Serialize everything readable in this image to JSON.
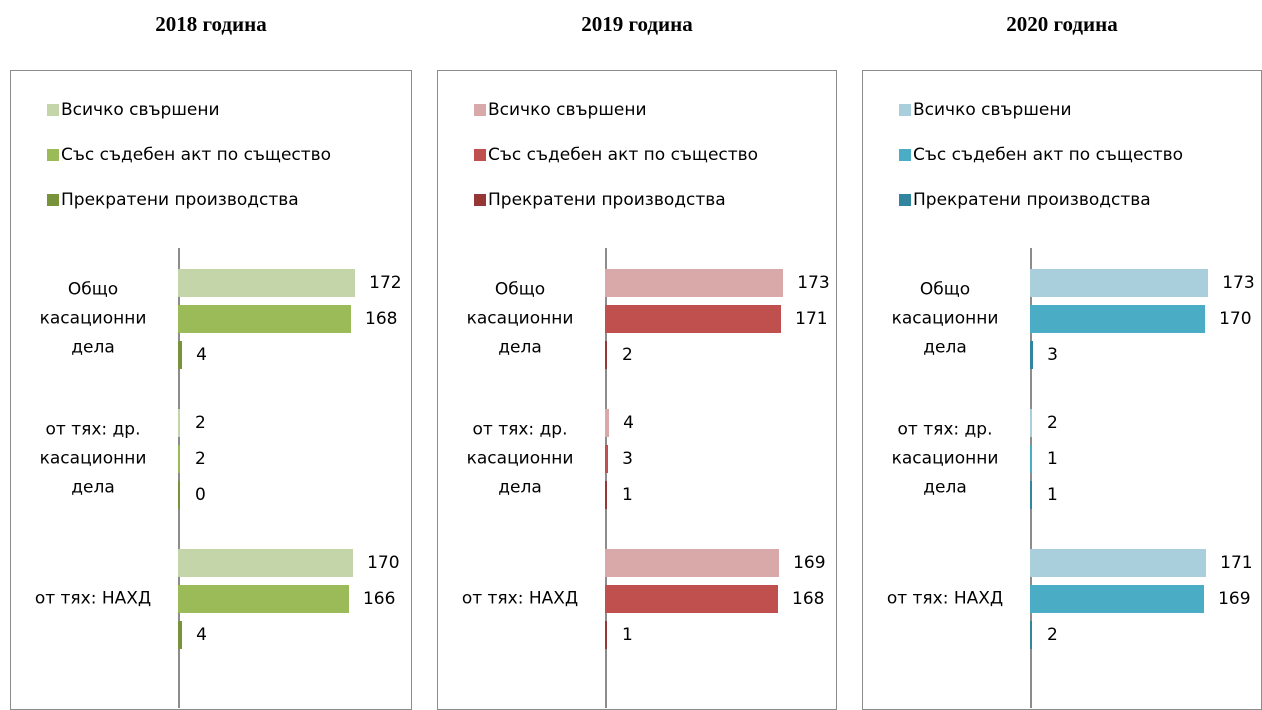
{
  "chart_data": [
    {
      "type": "bar",
      "orientation": "horizontal",
      "title": "2018 година",
      "categories": [
        "Общо касационни дела",
        "от тях: др. касационни дела",
        "от тях: НАХД"
      ],
      "xlim": [
        0,
        200
      ],
      "series": [
        {
          "name": "Всичко свършени",
          "color": "#c4d6a9",
          "values": [
            172,
            2,
            170
          ]
        },
        {
          "name": "Със съдебен акт по същество",
          "color": "#9bbb59",
          "values": [
            168,
            2,
            166
          ]
        },
        {
          "name": "Прекратени производства",
          "color": "#77933c",
          "values": [
            4,
            0,
            4
          ]
        }
      ]
    },
    {
      "type": "bar",
      "orientation": "horizontal",
      "title": "2019 година",
      "categories": [
        "Общо касационни дела",
        "от тях: др. касационни дела",
        "от тях: НАХД"
      ],
      "xlim": [
        0,
        200
      ],
      "series": [
        {
          "name": "Всичко свършени",
          "color": "#d9a9a9",
          "values": [
            173,
            4,
            169
          ]
        },
        {
          "name": "Със съдебен акт по същество",
          "color": "#c0504d",
          "values": [
            171,
            3,
            168
          ]
        },
        {
          "name": "Прекратени производства",
          "color": "#953735",
          "values": [
            2,
            1,
            1
          ]
        }
      ]
    },
    {
      "type": "bar",
      "orientation": "horizontal",
      "title": "2020 година",
      "categories": [
        "Общо касационни дела",
        "от тях: др. касационни дела",
        "от тях: НАХД"
      ],
      "xlim": [
        0,
        200
      ],
      "series": [
        {
          "name": "Всичко свършени",
          "color": "#a9cfdc",
          "values": [
            173,
            2,
            171
          ]
        },
        {
          "name": "Със съдебен акт по същество",
          "color": "#4bacc6",
          "values": [
            170,
            1,
            169
          ]
        },
        {
          "name": "Прекратени производства",
          "color": "#31859c",
          "values": [
            3,
            1,
            2
          ]
        }
      ]
    }
  ]
}
